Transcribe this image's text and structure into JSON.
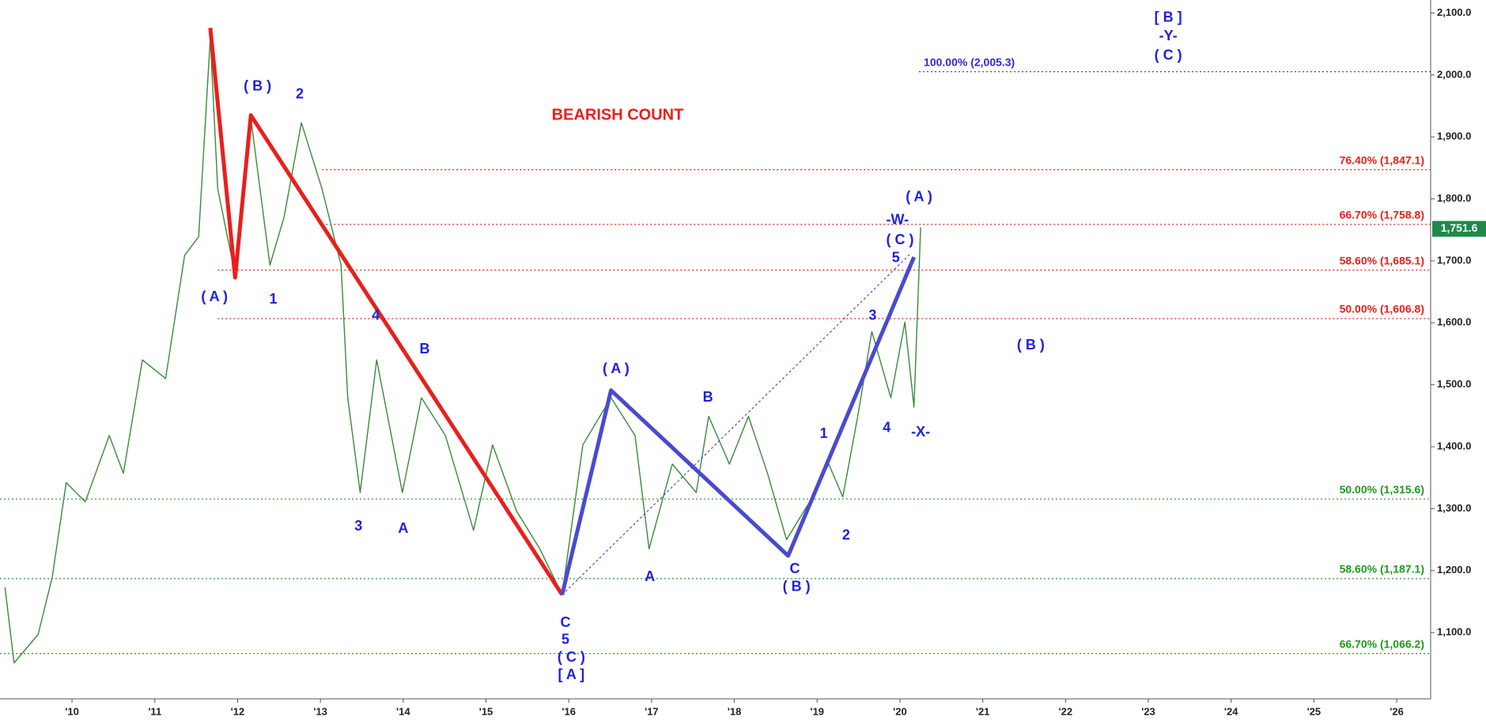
{
  "chart_data": {
    "type": "line",
    "title": "BEARISH COUNT",
    "title_color": "#e8201c",
    "xlim": [
      2009.13,
      2026.41
    ],
    "ylim": [
      993,
      2121
    ],
    "xticks": [
      {
        "value": 2010,
        "label": "'10"
      },
      {
        "value": 2011,
        "label": "'11"
      },
      {
        "value": 2012,
        "label": "'12"
      },
      {
        "value": 2013,
        "label": "'13"
      },
      {
        "value": 2014,
        "label": "'14"
      },
      {
        "value": 2015,
        "label": "'15"
      },
      {
        "value": 2016,
        "label": "'16"
      },
      {
        "value": 2017,
        "label": "'17"
      },
      {
        "value": 2018,
        "label": "'18"
      },
      {
        "value": 2019,
        "label": "'19"
      },
      {
        "value": 2020,
        "label": "'20"
      },
      {
        "value": 2021,
        "label": "'21"
      },
      {
        "value": 2022,
        "label": "'22"
      },
      {
        "value": 2023,
        "label": "'23"
      },
      {
        "value": 2024,
        "label": "'24"
      },
      {
        "value": 2025,
        "label": "'25"
      },
      {
        "value": 2026,
        "label": "'26"
      }
    ],
    "yticks": [
      {
        "value": 1100,
        "label": "1,100.0"
      },
      {
        "value": 1200,
        "label": "1,200.0"
      },
      {
        "value": 1300,
        "label": "1,300.0"
      },
      {
        "value": 1400,
        "label": "1,400.0"
      },
      {
        "value": 1500,
        "label": "1,500.0"
      },
      {
        "value": 1600,
        "label": "1,600.0"
      },
      {
        "value": 1700,
        "label": "1,700.0"
      },
      {
        "value": 1800,
        "label": "1,800.0"
      },
      {
        "value": 1900,
        "label": "1,900.0"
      },
      {
        "value": 2000,
        "label": "2,000.0"
      },
      {
        "value": 2100,
        "label": "2,100.0"
      }
    ],
    "price": {
      "color": "#3a8a3a",
      "x": [
        2009.19,
        2009.3,
        2009.59,
        2009.76,
        2009.93,
        2010.16,
        2010.45,
        2010.62,
        2010.85,
        2011.13,
        2011.36,
        2011.53,
        2011.67,
        2011.76,
        2011.97,
        2012.16,
        2012.39,
        2012.56,
        2012.77,
        2013.02,
        2013.25,
        2013.33,
        2013.48,
        2013.68,
        2013.99,
        2014.22,
        2014.51,
        2014.85,
        2015.08,
        2015.37,
        2015.65,
        2015.92,
        2016.17,
        2016.51,
        2016.8,
        2016.97,
        2017.25,
        2017.54,
        2017.69,
        2017.94,
        2018.17,
        2018.4,
        2018.63,
        2018.91,
        2019.14,
        2019.31,
        2019.49,
        2019.66,
        2019.89,
        2020.06,
        2020.17,
        2020.25
      ],
      "values": [
        1173,
        1051,
        1097,
        1189,
        1342,
        1311,
        1418,
        1357,
        1540,
        1510,
        1709,
        1739,
        2060,
        1816,
        1678,
        1930,
        1693,
        1770,
        1923,
        1816,
        1693,
        1479,
        1326,
        1540,
        1326,
        1479,
        1418,
        1265,
        1403,
        1296,
        1235,
        1161,
        1403,
        1479,
        1418,
        1235,
        1372,
        1326,
        1449,
        1372,
        1449,
        1357,
        1250,
        1311,
        1372,
        1319,
        1449,
        1586,
        1479,
        1601,
        1464,
        1754
      ]
    },
    "wave_lines": [
      {
        "color": "#e8201c",
        "x": [
          2011.67,
          2011.97,
          2012.16,
          2015.92
        ],
        "values": [
          2076,
          1673,
          1935,
          1161
        ]
      },
      {
        "color": "#4a4ad0",
        "x": [
          2015.92,
          2016.51,
          2018.65,
          2020.17
        ],
        "values": [
          1161,
          1491,
          1224,
          1706
        ]
      }
    ],
    "trendline": {
      "color": "#2b2bd6",
      "x": [
        2015.92,
        2020.13
      ],
      "values": [
        1161,
        1712
      ]
    },
    "levels": [
      {
        "value": 2005.3,
        "label": "100.00% (2,005.3)",
        "color": "#2b2bd6",
        "start": 2020.23
      },
      {
        "value": 1847.1,
        "label": "76.40% (1,847.1)",
        "color": "#e8201c",
        "start": 2013.02
      },
      {
        "value": 1758.8,
        "label": "66.70% (1,758.8)",
        "color": "#e8201c",
        "start": 2013.02
      },
      {
        "value": 1685.1,
        "label": "58.60% (1,685.1)",
        "color": "#e8201c",
        "start": 2011.76
      },
      {
        "value": 1606.8,
        "label": "50.00% (1,606.8)",
        "color": "#e8201c",
        "start": 2011.76
      },
      {
        "value": 1315.6,
        "label": "50.00% (1,315.6)",
        "color": "#1e9a1e"
      },
      {
        "value": 1187.1,
        "label": "58.60% (1,187.1)",
        "color": "#1e9a1e"
      },
      {
        "value": 1066.2,
        "label": "66.70% (1,066.2)",
        "color": "#1e9a1e"
      }
    ],
    "last_price": {
      "value": 1751.6,
      "label": "1,751.6",
      "color": "#1e8a4a"
    },
    "annotations": [
      {
        "text": "( B )",
        "x": 2012.24,
        "y": 1981,
        "color": "#2020e0"
      },
      {
        "text": "2",
        "x": 2012.75,
        "y": 1968,
        "color": "#2020e0"
      },
      {
        "text": "( A )",
        "x": 2011.72,
        "y": 1641,
        "color": "#2020e0"
      },
      {
        "text": "1",
        "x": 2012.43,
        "y": 1637,
        "color": "#2020e0"
      },
      {
        "text": "4",
        "x": 2013.67,
        "y": 1611,
        "color": "#2020e0"
      },
      {
        "text": "B",
        "x": 2014.26,
        "y": 1557,
        "color": "#2020e0"
      },
      {
        "text": "3",
        "x": 2013.46,
        "y": 1271,
        "color": "#2020e0"
      },
      {
        "text": "A",
        "x": 2014.0,
        "y": 1267,
        "color": "#2020e0"
      },
      {
        "text": "C",
        "x": 2015.96,
        "y": 1115,
        "color": "#2020e0"
      },
      {
        "text": "5",
        "x": 2015.96,
        "y": 1088,
        "color": "#2020e0"
      },
      {
        "text": "( C )",
        "x": 2016.03,
        "y": 1059,
        "color": "#2020e0"
      },
      {
        "text": "[ A ]",
        "x": 2016.03,
        "y": 1031,
        "color": "#2020e0"
      },
      {
        "text": "( A )",
        "x": 2016.57,
        "y": 1525,
        "color": "#2020e0"
      },
      {
        "text": "A",
        "x": 2016.98,
        "y": 1189,
        "color": "#2020e0"
      },
      {
        "text": "B",
        "x": 2017.68,
        "y": 1479,
        "color": "#2020e0"
      },
      {
        "text": "C",
        "x": 2018.73,
        "y": 1202,
        "color": "#2020e0"
      },
      {
        "text": "( B )",
        "x": 2018.75,
        "y": 1173,
        "color": "#2020e0"
      },
      {
        "text": "1",
        "x": 2019.08,
        "y": 1420,
        "color": "#2020e0"
      },
      {
        "text": "2",
        "x": 2019.35,
        "y": 1256,
        "color": "#2020e0"
      },
      {
        "text": "3",
        "x": 2019.67,
        "y": 1611,
        "color": "#2020e0"
      },
      {
        "text": "4",
        "x": 2019.84,
        "y": 1430,
        "color": "#2020e0"
      },
      {
        "text": "( A )",
        "x": 2020.23,
        "y": 1802,
        "color": "#2020e0"
      },
      {
        "text": "-W-",
        "x": 2019.97,
        "y": 1765,
        "color": "#2020e0"
      },
      {
        "text": "( C )",
        "x": 2020.0,
        "y": 1733,
        "color": "#2020e0"
      },
      {
        "text": "5",
        "x": 2019.95,
        "y": 1704,
        "color": "#2020e0"
      },
      {
        "text": "-X-",
        "x": 2020.25,
        "y": 1423,
        "color": "#2020e0"
      },
      {
        "text": "( B )",
        "x": 2021.58,
        "y": 1563,
        "color": "#2020e0"
      },
      {
        "text": "[ B ]",
        "x": 2023.24,
        "y": 2092,
        "color": "#2020e0"
      },
      {
        "text": "-Y-",
        "x": 2023.24,
        "y": 2062,
        "color": "#2020e0"
      },
      {
        "text": "( C )",
        "x": 2023.24,
        "y": 2031,
        "color": "#2020e0"
      }
    ]
  }
}
